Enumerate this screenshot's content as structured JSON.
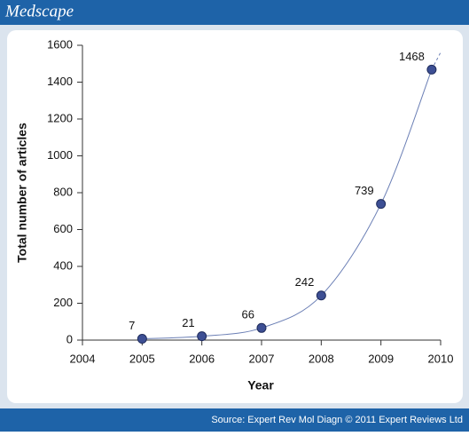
{
  "header": {
    "brand": "Medscape"
  },
  "footer": {
    "source": "Source: Expert Rev Mol Diagn © 2011 Expert Reviews Ltd"
  },
  "chart_data": {
    "type": "line",
    "x_label": "Year",
    "y_label": "Total number of articles",
    "x": [
      2005,
      2006,
      2007,
      2008,
      2009,
      2009.85
    ],
    "series": [
      {
        "color": "#3d4f94",
        "values": [
          7,
          21,
          66,
          242,
          739,
          1468
        ]
      }
    ],
    "xlim": [
      2004,
      2010
    ],
    "xticks": [
      2004,
      2005,
      2006,
      2007,
      2008,
      2009,
      2010
    ],
    "ylim": [
      0,
      1600
    ],
    "yticks": [
      0,
      200,
      400,
      600,
      800,
      1000,
      1200,
      1400,
      1600
    ]
  }
}
